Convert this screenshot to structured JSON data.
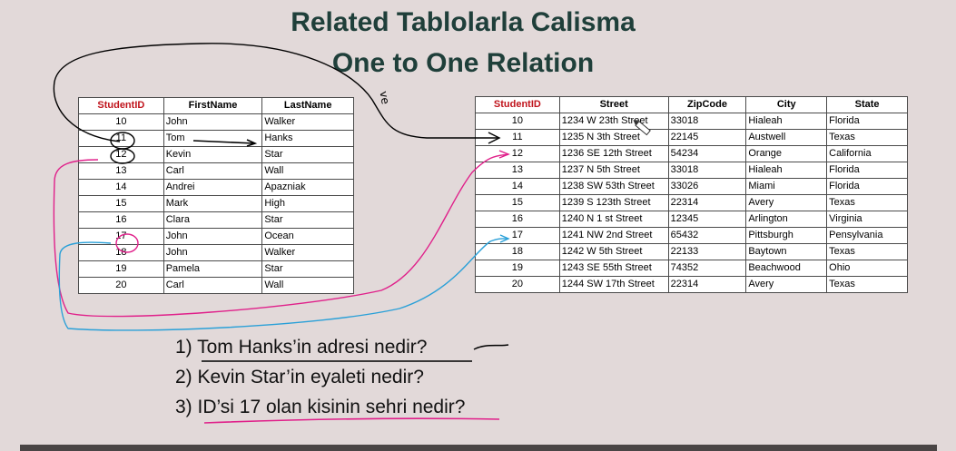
{
  "slide": {
    "title_line1": "Related Tablolarla Calisma",
    "title_line2": "One to One Relation",
    "colors": {
      "title": "#1f3f3a",
      "primary_key_header": "#c0141c",
      "ink_black": "#000000",
      "ink_pink": "#e0208a",
      "ink_cyan": "#2aa0d8"
    }
  },
  "students_table": {
    "columns": [
      "StudentID",
      "FirstName",
      "LastName"
    ],
    "rows": [
      [
        "10",
        "John",
        "Walker"
      ],
      [
        "11",
        "Tom",
        "Hanks"
      ],
      [
        "12",
        "Kevin",
        "Star"
      ],
      [
        "13",
        "Carl",
        "Wall"
      ],
      [
        "14",
        "Andrei",
        "Apazniak"
      ],
      [
        "15",
        "Mark",
        "High"
      ],
      [
        "16",
        "Clara",
        "Star"
      ],
      [
        "17",
        "John",
        "Ocean"
      ],
      [
        "18",
        "John",
        "Walker"
      ],
      [
        "19",
        "Pamela",
        "Star"
      ],
      [
        "20",
        "Carl",
        "Wall"
      ]
    ]
  },
  "addresses_table": {
    "columns": [
      "StudentID",
      "Street",
      "ZipCode",
      "City",
      "State"
    ],
    "rows": [
      [
        "10",
        "1234 W 23th Street",
        "33018",
        "Hialeah",
        "Florida"
      ],
      [
        "11",
        "1235 N 3th Street",
        "22145",
        "Austwell",
        "Texas"
      ],
      [
        "12",
        "1236 SE 12th Street",
        "54234",
        "Orange",
        "California"
      ],
      [
        "13",
        "1237 N 5th Street",
        "33018",
        "Hialeah",
        "Florida"
      ],
      [
        "14",
        "1238 SW 53th Street",
        "33026",
        "Miami",
        "Florida"
      ],
      [
        "15",
        "1239 S 123th Street",
        "22314",
        "Avery",
        "Texas"
      ],
      [
        "16",
        "1240 N 1 st Street",
        "12345",
        "Arlington",
        "Virginia"
      ],
      [
        "17",
        "1241 NW 2nd Street",
        "65432",
        "Pittsburgh",
        "Pensylvania"
      ],
      [
        "18",
        "1242 W 5th Street",
        "22133",
        "Baytown",
        "Texas"
      ],
      [
        "19",
        "1243 SE 55th Street",
        "74352",
        "Beachwood",
        "Ohio"
      ],
      [
        "20",
        "1244 SW 17th Street",
        "22314",
        "Avery",
        "Texas"
      ]
    ]
  },
  "questions": [
    "1) Tom Hanks’in adresi nedir?",
    "2) Kevin Star’in eyaleti nedir?",
    "3) ID’si 17 olan kisinin sehri nedir?"
  ],
  "annotation_text": "ve"
}
